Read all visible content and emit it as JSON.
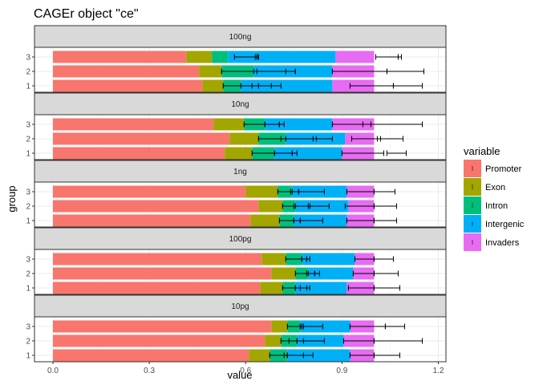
{
  "chart_data": {
    "type": "bar",
    "orientation": "horizontal",
    "stacked": true,
    "title": "CAGEr object \"ce\"",
    "xlabel": "value",
    "ylabel": "group",
    "xlim": [
      -0.05,
      1.2
    ],
    "x_ticks": [
      0.0,
      0.3,
      0.6,
      0.9,
      1.2
    ],
    "x_tick_labels": [
      "0.0",
      "0.3",
      "0.6",
      "0.9",
      "1.2"
    ],
    "groups": [
      "1",
      "2",
      "3"
    ],
    "legend": {
      "title": "variable",
      "position": "right",
      "entries": [
        "Promoter",
        "Exon",
        "Intron",
        "Intergenic",
        "Invaders"
      ]
    },
    "colors": {
      "Promoter": "#F8766D",
      "Exon": "#A3A500",
      "Intron": "#00BF7D",
      "Intergenic": "#00B0F6",
      "Invaders": "#E76BF3"
    },
    "grid": true,
    "panels": [
      {
        "label": "100ng",
        "rows": [
          {
            "group": "3",
            "values": [
              0.415,
              0.08,
              0.05,
              0.335,
              0.12
            ],
            "errors": [
              [
                0.565,
                0.64
              ],
              [
                0.64,
                0.63
              ],
              [
                0.64,
                0.635
              ],
              [
                1.005,
                1.075
              ],
              [
                1.075,
                1.085
              ]
            ]
          },
          {
            "group": "2",
            "values": [
              0.455,
              0.07,
              0.1,
              0.245,
              0.13
            ],
            "errors": [
              [
                0.525,
                0.635
              ],
              [
                0.625,
                0.755
              ],
              [
                0.725,
                0.755
              ],
              [
                0.87,
                1.04
              ],
              [
                1.04,
                1.155
              ]
            ]
          },
          {
            "group": "1",
            "values": [
              0.465,
              0.065,
              0.055,
              0.285,
              0.13
            ],
            "errors": [
              [
                0.53,
                0.62
              ],
              [
                0.585,
                0.68
              ],
              [
                0.64,
                0.71
              ],
              [
                0.925,
                1.06
              ],
              [
                1.06,
                1.15
              ]
            ]
          }
        ]
      },
      {
        "label": "10ng",
        "rows": [
          {
            "group": "3",
            "values": [
              0.5,
              0.095,
              0.065,
              0.21,
              0.13
            ],
            "errors": [
              [
                0.595,
                0.66
              ],
              [
                0.66,
                0.705
              ],
              [
                0.705,
                0.72
              ],
              [
                0.87,
                0.99
              ],
              [
                0.965,
                1.15
              ]
            ]
          },
          {
            "group": "2",
            "values": [
              0.55,
              0.09,
              0.085,
              0.185,
              0.09
            ],
            "errors": [
              [
                0.64,
                0.725
              ],
              [
                0.71,
                0.82
              ],
              [
                0.81,
                0.87
              ],
              [
                0.93,
                1.02
              ],
              [
                1.01,
                1.09
              ]
            ]
          },
          {
            "group": "1",
            "values": [
              0.535,
              0.085,
              0.07,
              0.21,
              0.1
            ],
            "errors": [
              [
                0.62,
                0.69
              ],
              [
                0.69,
                0.745
              ],
              [
                0.745,
                0.76
              ],
              [
                0.9,
                1.03
              ],
              [
                1.04,
                1.1
              ]
            ]
          }
        ]
      },
      {
        "label": "1ng",
        "rows": [
          {
            "group": "3",
            "values": [
              0.6,
              0.1,
              0.045,
              0.17,
              0.085
            ],
            "errors": [
              [
                0.7,
                0.745
              ],
              [
                0.74,
                0.765
              ],
              [
                0.765,
                0.845
              ],
              [
                0.915,
                1.0
              ],
              [
                1.0,
                1.065
              ]
            ]
          },
          {
            "group": "2",
            "values": [
              0.64,
              0.075,
              0.04,
              0.165,
              0.08
            ],
            "errors": [
              [
                0.715,
                0.755
              ],
              [
                0.75,
                0.8
              ],
              [
                0.795,
                0.86
              ],
              [
                0.91,
                1.0
              ],
              [
                1.0,
                1.07
              ]
            ]
          },
          {
            "group": "1",
            "values": [
              0.615,
              0.09,
              0.045,
              0.165,
              0.085
            ],
            "errors": [
              [
                0.705,
                0.75
              ],
              [
                0.75,
                0.77
              ],
              [
                0.77,
                0.84
              ],
              [
                0.915,
                1.0
              ],
              [
                1.0,
                1.07
              ]
            ]
          }
        ]
      },
      {
        "label": "100pg",
        "rows": [
          {
            "group": "3",
            "values": [
              0.65,
              0.075,
              0.05,
              0.165,
              0.06
            ],
            "errors": [
              [
                0.725,
                0.775
              ],
              [
                0.775,
                0.79
              ],
              [
                0.79,
                0.8
              ],
              [
                0.94,
                1.0
              ],
              [
                1.0,
                1.06
              ]
            ]
          },
          {
            "group": "2",
            "values": [
              0.68,
              0.075,
              0.04,
              0.14,
              0.065
            ],
            "errors": [
              [
                0.755,
                0.795
              ],
              [
                0.79,
                0.815
              ],
              [
                0.815,
                0.83
              ],
              [
                0.935,
                1.0
              ],
              [
                1.0,
                1.075
              ]
            ]
          },
          {
            "group": "1",
            "values": [
              0.645,
              0.07,
              0.04,
              0.16,
              0.085
            ],
            "errors": [
              [
                0.715,
                0.755
              ],
              [
                0.755,
                0.79
              ],
              [
                0.77,
                0.8
              ],
              [
                0.92,
                1.0
              ],
              [
                1.0,
                1.08
              ]
            ]
          }
        ]
      },
      {
        "label": "10pg",
        "rows": [
          {
            "group": "3",
            "values": [
              0.68,
              0.05,
              0.04,
              0.155,
              0.075
            ],
            "errors": [
              [
                0.73,
                0.77
              ],
              [
                0.77,
                0.78
              ],
              [
                0.775,
                0.84
              ],
              [
                0.925,
                1.035
              ],
              [
                1.035,
                1.095
              ]
            ]
          },
          {
            "group": "2",
            "values": [
              0.66,
              0.05,
              0.05,
              0.145,
              0.095
            ],
            "errors": [
              [
                0.71,
                0.76
              ],
              [
                0.735,
                0.78
              ],
              [
                0.76,
                0.845
              ],
              [
                0.905,
                1.0
              ],
              [
                1.0,
                1.15
              ]
            ]
          },
          {
            "group": "1",
            "values": [
              0.61,
              0.065,
              0.055,
              0.195,
              0.075
            ],
            "errors": [
              [
                0.675,
                0.73
              ],
              [
                0.72,
                0.78
              ],
              [
                0.73,
                0.81
              ],
              [
                0.925,
                1.0
              ],
              [
                1.0,
                1.08
              ]
            ]
          }
        ]
      }
    ]
  }
}
